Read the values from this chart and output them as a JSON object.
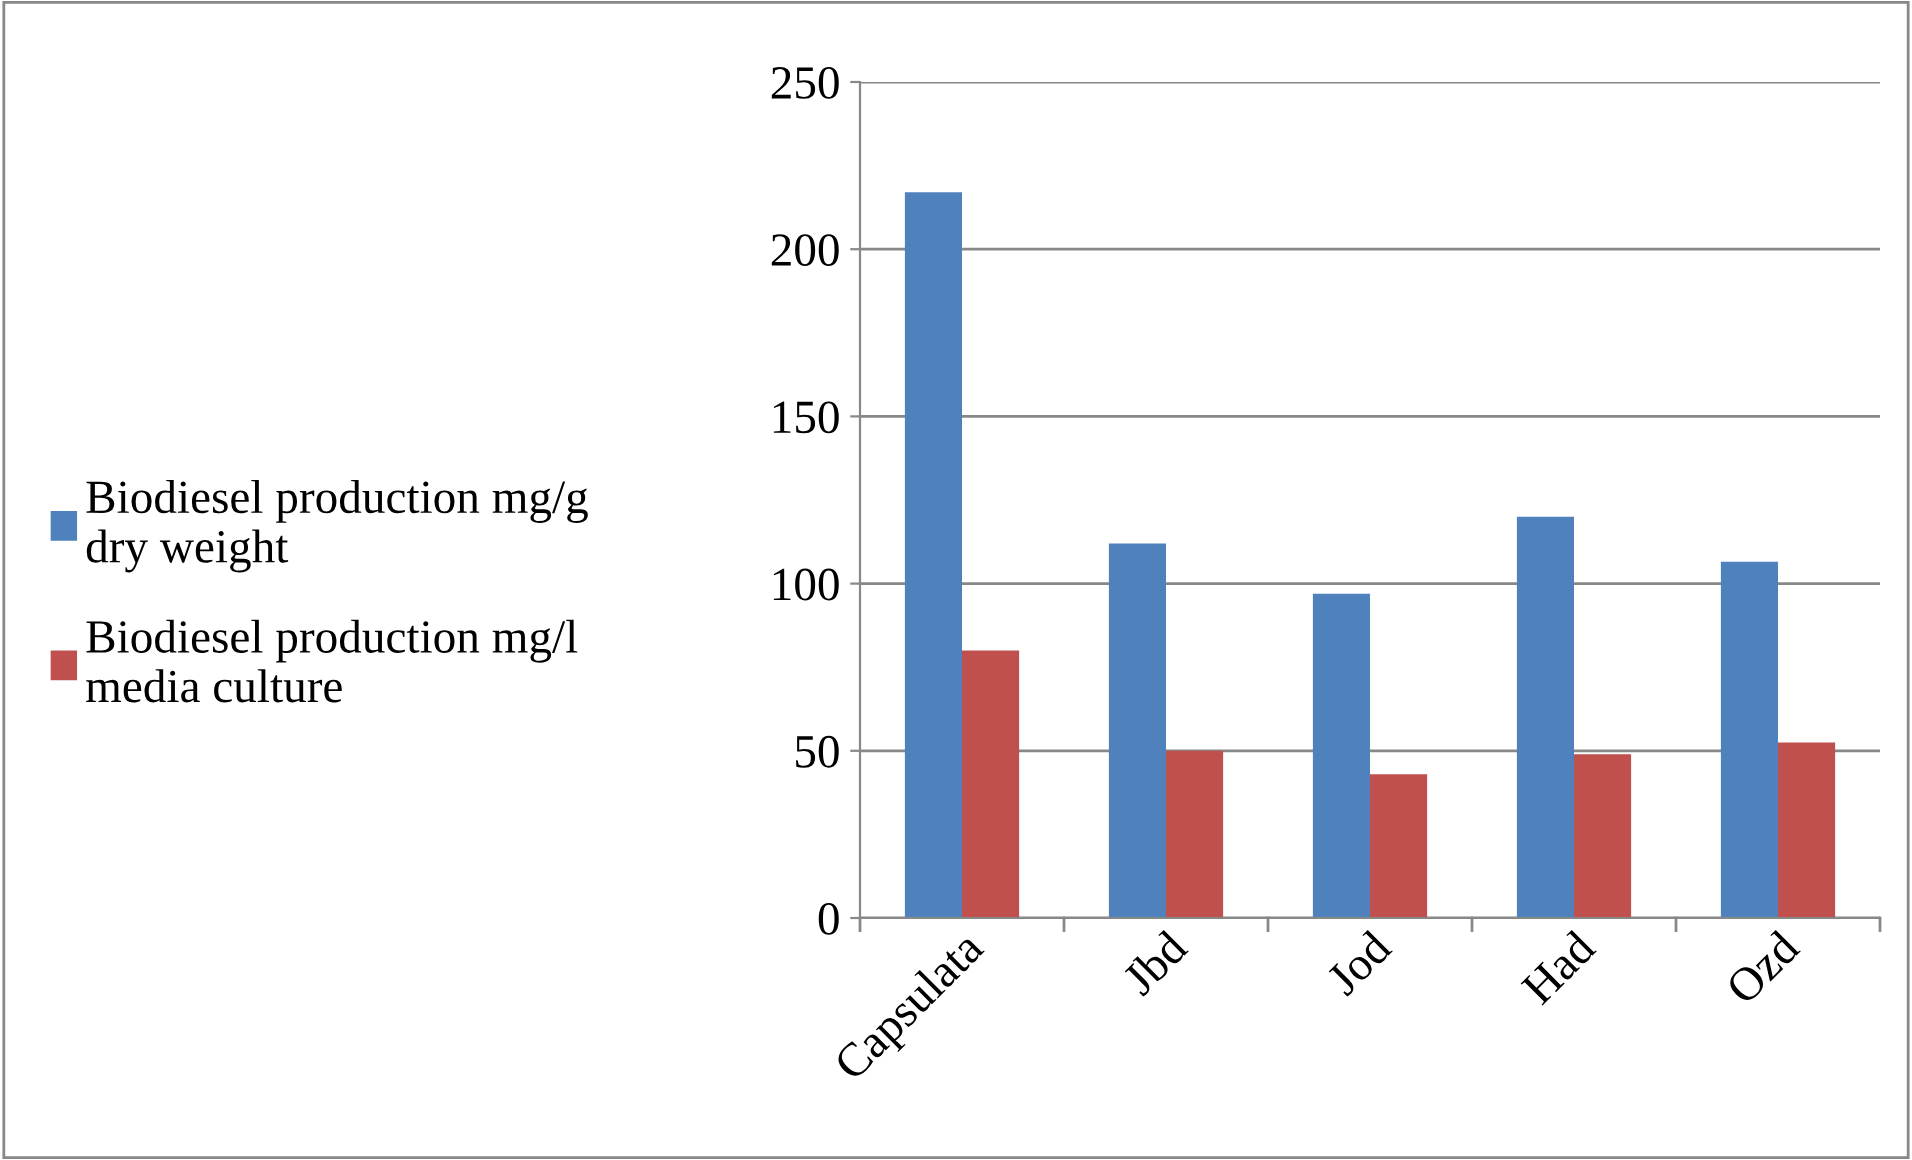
{
  "chart_data": {
    "type": "bar",
    "categories": [
      "Capsulata",
      "Jbd",
      "Jod",
      "Had",
      "Ozd"
    ],
    "series": [
      {
        "name": "Biodiesel production mg/g dry weight",
        "color": "#4f81bd",
        "values": [
          217,
          112,
          97,
          120,
          106.5
        ]
      },
      {
        "name": "Biodiesel production mg/l media culture",
        "color": "#c0504d",
        "values": [
          80,
          50,
          43,
          49,
          52.5
        ]
      }
    ],
    "ylim": [
      0,
      250
    ],
    "yticks": [
      0,
      50,
      100,
      150,
      200,
      250
    ],
    "grid": "y",
    "legend": "left"
  }
}
